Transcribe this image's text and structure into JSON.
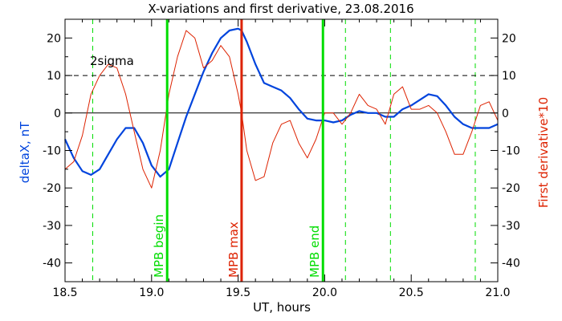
{
  "chart_data": {
    "type": "line",
    "title": "X-variations and first derivative, 23.08.2016",
    "xlabel": "UT, hours",
    "ylabel_left": "deltaX, nT",
    "ylabel_right": "First derivative*10",
    "xlim": [
      18.5,
      21.0
    ],
    "ylim": [
      -45,
      25
    ],
    "x_ticks": [
      18.5,
      19.0,
      19.5,
      20.0,
      20.5,
      21.0
    ],
    "x_tick_labels": [
      "18.5",
      "19.0",
      "19.5",
      "20.0",
      "20.5",
      "21.0"
    ],
    "y_ticks": [
      20,
      10,
      0,
      -10,
      -20,
      -30,
      -40
    ],
    "y_tick_labels": [
      "20",
      "10",
      "0",
      "-10",
      "-20",
      "-30",
      "-40"
    ],
    "sigma_level": 10,
    "sigma_label": "2sigma",
    "zero_line": 0,
    "dashed_markers": [
      18.66,
      20.12,
      20.38,
      20.87
    ],
    "vertical_markers": [
      {
        "x": 19.09,
        "label": "MPB begin",
        "color": "#00dd00"
      },
      {
        "x": 19.52,
        "label": "MPB max",
        "color": "#dd2200"
      },
      {
        "x": 19.99,
        "label": "MPB end",
        "color": "#00dd00"
      }
    ],
    "series": [
      {
        "axis": "left",
        "color": "#0044dd",
        "x": [
          18.5,
          18.55,
          18.6,
          18.65,
          18.7,
          18.75,
          18.8,
          18.85,
          18.9,
          18.95,
          19.0,
          19.05,
          19.1,
          19.15,
          19.2,
          19.25,
          19.3,
          19.35,
          19.4,
          19.45,
          19.5,
          19.52,
          19.55,
          19.6,
          19.65,
          19.7,
          19.75,
          19.8,
          19.85,
          19.9,
          19.95,
          20.0,
          20.05,
          20.1,
          20.15,
          20.2,
          20.25,
          20.3,
          20.35,
          20.4,
          20.45,
          20.5,
          20.55,
          20.6,
          20.65,
          20.7,
          20.75,
          20.8,
          20.85,
          20.9,
          20.95,
          21.0
        ],
        "values": [
          -7,
          -12,
          -15.5,
          -16.5,
          -15,
          -11,
          -7,
          -4,
          -4,
          -8,
          -14,
          -17,
          -15,
          -8,
          -1,
          5,
          11,
          16,
          20,
          22,
          22.5,
          22,
          19,
          13,
          8,
          7,
          6,
          4,
          1,
          -1.5,
          -2,
          -2,
          -2.5,
          -2,
          -0.5,
          0.5,
          0,
          0,
          -1,
          -1,
          1,
          2,
          3.5,
          5,
          4.5,
          2,
          -1,
          -3,
          -4,
          -4,
          -4,
          -3
        ]
      },
      {
        "axis": "right",
        "color": "#dd2200",
        "x": [
          18.5,
          18.55,
          18.6,
          18.65,
          18.7,
          18.75,
          18.8,
          18.85,
          18.9,
          18.95,
          19.0,
          19.05,
          19.1,
          19.15,
          19.2,
          19.25,
          19.3,
          19.35,
          19.4,
          19.45,
          19.5,
          19.52,
          19.55,
          19.6,
          19.65,
          19.7,
          19.75,
          19.8,
          19.85,
          19.9,
          19.95,
          20.0,
          20.05,
          20.1,
          20.15,
          20.2,
          20.25,
          20.3,
          20.35,
          20.4,
          20.45,
          20.5,
          20.55,
          20.6,
          20.65,
          20.7,
          20.75,
          20.8,
          20.85,
          20.9,
          20.95,
          21.0
        ],
        "values": [
          -15,
          -13,
          -6,
          5,
          10,
          13,
          12,
          5,
          -5,
          -15,
          -20,
          -10,
          5,
          15,
          22,
          20,
          12,
          14,
          18,
          15,
          5,
          0,
          -10,
          -18,
          -17,
          -8,
          -3,
          -2,
          -8,
          -12,
          -7,
          0,
          0,
          -3,
          0,
          5,
          2,
          1,
          -3,
          5,
          7,
          1,
          1,
          2,
          0,
          -5,
          -11,
          -11,
          -5,
          2,
          3,
          -2
        ]
      }
    ]
  }
}
